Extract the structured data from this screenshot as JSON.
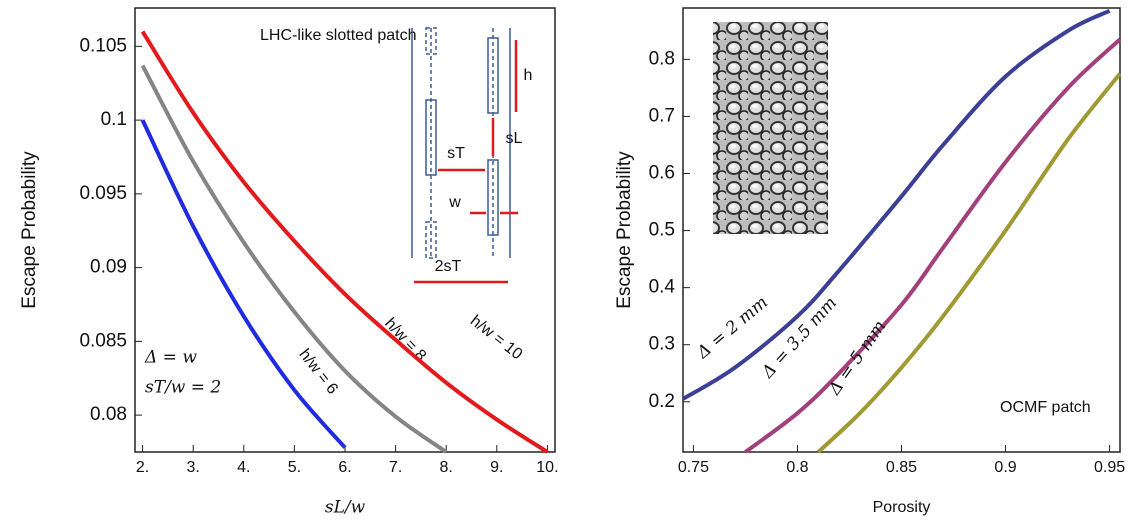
{
  "chart_data": [
    {
      "type": "line",
      "x_label": "sL/w",
      "y_label": "Escape Probability",
      "xlim": [
        1.85,
        10.15
      ],
      "xticks": [
        {
          "value": 2,
          "label": "2."
        },
        {
          "value": 3,
          "label": "3."
        },
        {
          "value": 4,
          "label": "4."
        },
        {
          "value": 5,
          "label": "5."
        },
        {
          "value": 6,
          "label": "6."
        },
        {
          "value": 7,
          "label": "7."
        },
        {
          "value": 8,
          "label": "8."
        },
        {
          "value": 9,
          "label": "9."
        },
        {
          "value": 10,
          "label": "10."
        }
      ],
      "ylim": [
        0.0775,
        0.1076
      ],
      "yticks": [
        0.08,
        0.085,
        0.09,
        0.095,
        0.1,
        0.105
      ],
      "series": [
        {
          "name": "h/w = 6",
          "color": "#1f2be0",
          "x": [
            2,
            3,
            4,
            5,
            6
          ],
          "values": [
            0.1,
            0.0928,
            0.0867,
            0.0817,
            0.0778
          ]
        },
        {
          "name": "h/w = 8",
          "color": "#858585",
          "x": [
            2,
            3,
            4,
            5,
            6,
            7,
            8
          ],
          "values": [
            0.1037,
            0.0972,
            0.0917,
            0.087,
            0.083,
            0.0799,
            0.0775
          ]
        },
        {
          "name": "h/w = 10",
          "color": "#e3191c",
          "x": [
            2,
            3,
            4,
            5,
            6,
            7,
            8,
            9,
            10
          ],
          "values": [
            0.106,
            0.1005,
            0.0958,
            0.0918,
            0.0882,
            0.0851,
            0.0822,
            0.0797,
            0.0775
          ]
        }
      ],
      "annotations": [
        "LHC-like slotted patch",
        "Δ = w",
        "sT/w = 2"
      ],
      "inset_labels": [
        "h",
        "sL",
        "sT",
        "w",
        "2sT"
      ]
    },
    {
      "type": "line",
      "x_label": "Porosity",
      "y_label": "Escape Probability",
      "xlim": [
        0.745,
        0.955
      ],
      "xticks": [
        0.75,
        0.8,
        0.85,
        0.9,
        0.95
      ],
      "ylim": [
        0.112,
        0.89
      ],
      "yticks": [
        0.2,
        0.3,
        0.4,
        0.5,
        0.6,
        0.7,
        0.8
      ],
      "series": [
        {
          "name": "Δ = 2 mm",
          "color": "#3b3f95",
          "x": [
            0.745,
            0.77,
            0.8,
            0.82,
            0.85,
            0.87,
            0.9,
            0.93,
            0.95
          ],
          "values": [
            0.205,
            0.26,
            0.35,
            0.43,
            0.56,
            0.65,
            0.77,
            0.85,
            0.885
          ]
        },
        {
          "name": "Δ = 3.5 mm",
          "color": "#a2407c",
          "x": [
            0.775,
            0.8,
            0.82,
            0.85,
            0.87,
            0.9,
            0.93,
            0.955
          ],
          "values": [
            0.112,
            0.18,
            0.25,
            0.37,
            0.47,
            0.62,
            0.75,
            0.835
          ]
        },
        {
          "name": "Δ = 5 mm",
          "color": "#a09a35",
          "x": [
            0.81,
            0.83,
            0.85,
            0.87,
            0.9,
            0.93,
            0.955
          ],
          "values": [
            0.112,
            0.18,
            0.26,
            0.35,
            0.5,
            0.66,
            0.775
          ]
        }
      ],
      "annotations": [
        "OCMF patch"
      ]
    }
  ]
}
